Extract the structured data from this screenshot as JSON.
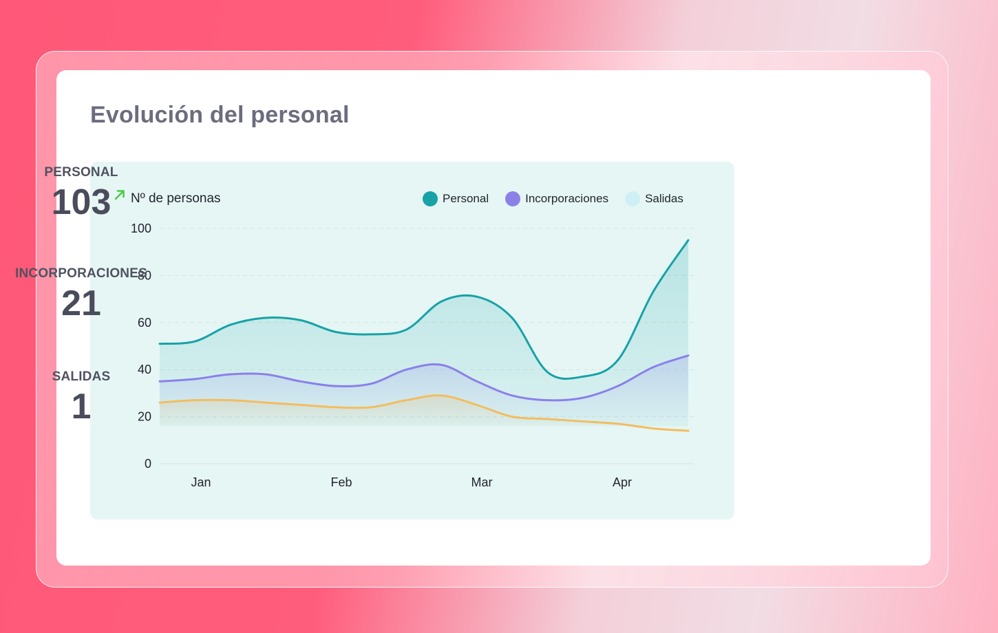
{
  "card": {
    "title": "Evolución del personal"
  },
  "stats": [
    {
      "label": "PERSONAL",
      "value": "103",
      "trend": "up"
    },
    {
      "label": "INCORPORACIONES",
      "value": "21"
    },
    {
      "label": "SALIDAS",
      "value": "1"
    }
  ],
  "colors": {
    "personal": "#17a2a6",
    "incorporaciones": "#8b80e8",
    "salidas": "#f2bd5e",
    "salidas_legend": "#cdf0f4",
    "trend_up": "#4cc94a"
  },
  "chart_data": {
    "type": "area",
    "ylabel": "Nº de personas",
    "yticks": [
      0,
      20,
      40,
      60,
      80,
      100
    ],
    "ylim": [
      0,
      100
    ],
    "x_tick_labels": [
      "Jan",
      "Feb",
      "Mar",
      "Apr"
    ],
    "legend_position": "top-right",
    "grid": "horizontal-dashed",
    "series": [
      {
        "name": "Personal",
        "key": "personal",
        "values": [
          51,
          52,
          59,
          62,
          61,
          56,
          55,
          57,
          69,
          71,
          62,
          39,
          37,
          44,
          73,
          95
        ]
      },
      {
        "name": "Incorporaciones",
        "key": "incorporaciones",
        "values": [
          35,
          36,
          38,
          38,
          35,
          33,
          34,
          40,
          42,
          35,
          29,
          27,
          28,
          33,
          41,
          46
        ]
      },
      {
        "name": "Salidas",
        "key": "salidas",
        "values": [
          26,
          27,
          27,
          26,
          25,
          24,
          24,
          27,
          29,
          25,
          20,
          19,
          18,
          17,
          15,
          14
        ]
      }
    ]
  }
}
